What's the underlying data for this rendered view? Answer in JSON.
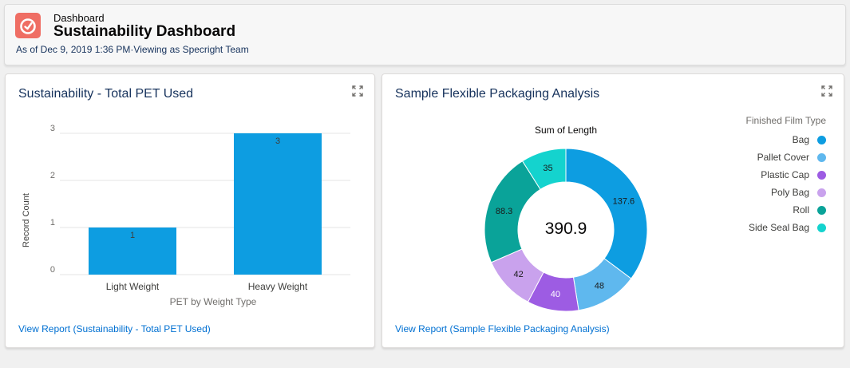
{
  "header": {
    "eyebrow": "Dashboard",
    "title": "Sustainability Dashboard",
    "as_of": "As of Dec 9, 2019 1:36 PM",
    "separator": "·",
    "viewing_as": "Viewing as Specright Team",
    "icon": "dashboard-gauge-icon",
    "icon_color": "#ef6e64"
  },
  "card1": {
    "title": "Sustainability - Total PET Used",
    "link": "View Report (Sustainability - Total PET Used)",
    "expand_icon": "expand-icon"
  },
  "card2": {
    "title": "Sample Flexible Packaging Analysis",
    "link": "View Report (Sample Flexible Packaging Analysis)",
    "expand_icon": "expand-icon",
    "legend_title": "Finished Film Type"
  },
  "chart_data": [
    {
      "type": "bar",
      "categories": [
        "Light Weight",
        "Heavy Weight"
      ],
      "values": [
        1,
        3
      ],
      "data_labels": [
        "1",
        "3"
      ],
      "xlabel": "PET by Weight Type",
      "ylabel": "Record Count",
      "ylim": [
        0,
        3
      ],
      "yticks": [
        "0",
        "1",
        "2",
        "3"
      ],
      "grid": true,
      "color": "#0d9de1"
    },
    {
      "type": "pie",
      "donut": true,
      "title": "Sum of Length",
      "total": "390.9",
      "slices": [
        {
          "label": "Bag",
          "value": 137.6,
          "display": "137.6",
          "color": "#0d9de1"
        },
        {
          "label": "Pallet Cover",
          "value": 48,
          "display": "48",
          "color": "#5fb8ee"
        },
        {
          "label": "Plastic Cap",
          "value": 40,
          "display": "40",
          "color": "#9d5ce3"
        },
        {
          "label": "Poly Bag",
          "value": 42,
          "display": "42",
          "color": "#c9a2ed"
        },
        {
          "label": "Roll",
          "value": 88.3,
          "display": "88.3",
          "color": "#0aa399"
        },
        {
          "label": "Side Seal Bag",
          "value": 35,
          "display": "35",
          "color": "#14d3ce"
        }
      ],
      "legend_position": "right"
    }
  ]
}
